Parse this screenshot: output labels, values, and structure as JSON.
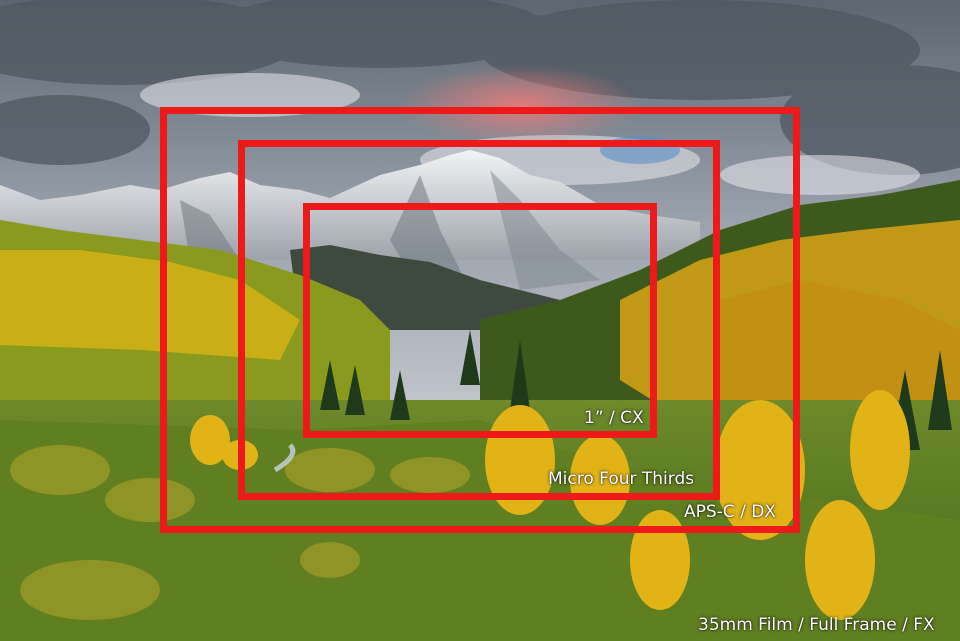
{
  "image": {
    "subject": "mountain-landscape-with-autumn-aspens",
    "frame_color": "#ee1a1a",
    "label_color": "#ffffff"
  },
  "sensor_frames": [
    {
      "id": "one-inch",
      "label": "1” / CX"
    },
    {
      "id": "micro-four-thirds",
      "label": "Micro Four Thirds"
    },
    {
      "id": "aps-c",
      "label": "APS-C / DX"
    }
  ],
  "full_frame_label": "35mm Film / Full Frame / FX"
}
